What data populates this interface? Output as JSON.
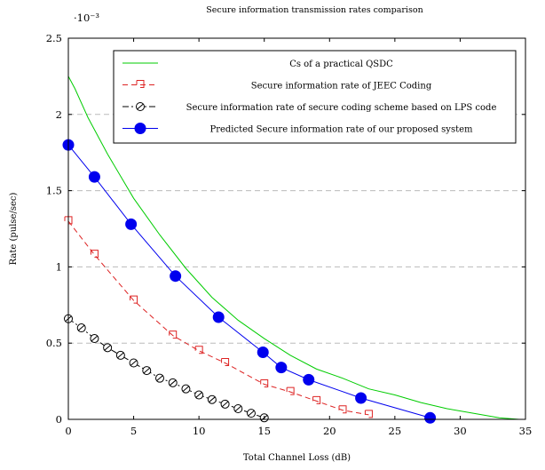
{
  "chart_data": {
    "type": "line",
    "title": "Secure information transmission rates comparison",
    "xlabel": "Total Channel Loss (dB)",
    "ylabel": "Rate (pulse/sec)",
    "y_multiplier_label": "·10⁻³",
    "xlim": [
      0,
      35
    ],
    "ylim": [
      0,
      2.5
    ],
    "xticks": [
      0,
      5,
      10,
      15,
      20,
      25,
      30,
      35
    ],
    "yticks": [
      0,
      0.5,
      1,
      1.5,
      2,
      2.5
    ],
    "xtick_labels": [
      "0",
      "5",
      "10",
      "15",
      "20",
      "25",
      "30",
      "35"
    ],
    "ytick_labels": [
      "0",
      "0.5",
      "1",
      "1.5",
      "2",
      "2.5"
    ],
    "grid": "horizontal dashed",
    "legend_position": "top-right",
    "series": [
      {
        "name": "Cs of a practical QSDC",
        "color": "#00cc00",
        "style": "solid",
        "marker": "none",
        "x": [
          0,
          0.5,
          1.5,
          3,
          5,
          7,
          9,
          11,
          13,
          15,
          17,
          19,
          21,
          23,
          25,
          27,
          29,
          31,
          33,
          34.5
        ],
        "y": [
          2.25,
          2.17,
          1.98,
          1.74,
          1.45,
          1.21,
          0.99,
          0.8,
          0.65,
          0.53,
          0.42,
          0.33,
          0.27,
          0.2,
          0.16,
          0.11,
          0.07,
          0.04,
          0.01,
          0.0
        ]
      },
      {
        "name": "Secure information rate of JEEC Coding",
        "color": "#dd2222",
        "style": "dashed",
        "marker": "square-hook",
        "x": [
          0,
          2,
          5,
          8,
          10,
          12,
          15,
          17,
          19,
          21,
          23
        ],
        "y": [
          1.3,
          1.08,
          0.78,
          0.55,
          0.45,
          0.37,
          0.23,
          0.18,
          0.12,
          0.06,
          0.03
        ]
      },
      {
        "name": "Secure information rate of secure coding scheme based on LPS code",
        "color": "#000000",
        "style": "dashdot",
        "marker": "circle-slash",
        "x": [
          0,
          1,
          2,
          3,
          4,
          5,
          6,
          7,
          8,
          9,
          10,
          11,
          12,
          13,
          14,
          15
        ],
        "y": [
          0.66,
          0.6,
          0.53,
          0.47,
          0.42,
          0.37,
          0.32,
          0.27,
          0.24,
          0.2,
          0.16,
          0.13,
          0.1,
          0.07,
          0.04,
          0.01
        ]
      },
      {
        "name": "Predicted Secure information rate of our proposed system",
        "color": "#0000ee",
        "style": "solid",
        "marker": "filled-circle",
        "x": [
          0,
          2,
          4.8,
          8.2,
          11.5,
          14.9,
          16.3,
          18.4,
          22.4,
          27.7
        ],
        "y": [
          1.8,
          1.59,
          1.28,
          0.94,
          0.67,
          0.44,
          0.34,
          0.26,
          0.14,
          0.01
        ]
      }
    ]
  }
}
